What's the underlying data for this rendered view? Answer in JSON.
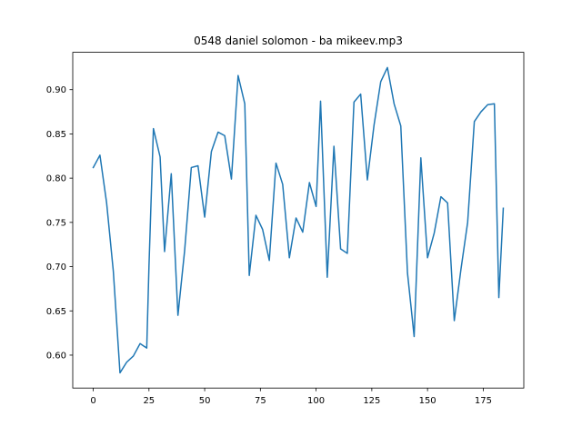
{
  "chart_data": {
    "type": "line",
    "title": "0548 daniel solomon - ba mikeev.mp3",
    "xlabel": "",
    "ylabel": "",
    "xlim": [
      -9.2,
      193.2
    ],
    "ylim": [
      0.5628,
      0.9422
    ],
    "x_ticks": [
      0,
      25,
      50,
      75,
      100,
      125,
      150,
      175
    ],
    "x_tick_labels": [
      "0",
      "25",
      "50",
      "75",
      "100",
      "125",
      "150",
      "175"
    ],
    "y_ticks": [
      0.6,
      0.65,
      0.7,
      0.75,
      0.8,
      0.85,
      0.9
    ],
    "y_tick_labels": [
      "0.60",
      "0.65",
      "0.70",
      "0.75",
      "0.80",
      "0.85",
      "0.90"
    ],
    "grid": false,
    "series": [
      {
        "color": "#1f77b4",
        "x": [
          0,
          3,
          6,
          9,
          12,
          15,
          18,
          21,
          24,
          25,
          27,
          30,
          32,
          35,
          38,
          41,
          44,
          47,
          50,
          53,
          56,
          59,
          62,
          65,
          68,
          70,
          73,
          76,
          79,
          82,
          85,
          88,
          91,
          94,
          97,
          100,
          102,
          105,
          108,
          111,
          114,
          117,
          120,
          123,
          126,
          129,
          132,
          135,
          138,
          141,
          144,
          147,
          150,
          153,
          156,
          159,
          162,
          165,
          168,
          171,
          174,
          177,
          180,
          182,
          184
        ],
        "values": [
          0.812,
          0.826,
          0.772,
          0.695,
          0.58,
          0.592,
          0.599,
          0.613,
          0.608,
          0.7,
          0.856,
          0.824,
          0.717,
          0.805,
          0.645,
          0.718,
          0.812,
          0.814,
          0.756,
          0.83,
          0.852,
          0.848,
          0.799,
          0.916,
          0.884,
          0.69,
          0.758,
          0.742,
          0.707,
          0.817,
          0.793,
          0.71,
          0.755,
          0.739,
          0.795,
          0.768,
          0.887,
          0.688,
          0.836,
          0.72,
          0.715,
          0.886,
          0.895,
          0.798,
          0.86,
          0.909,
          0.925,
          0.884,
          0.859,
          0.693,
          0.621,
          0.823,
          0.71,
          0.738,
          0.779,
          0.772,
          0.639,
          0.697,
          0.75,
          0.864,
          0.875,
          0.883,
          0.884,
          0.665,
          0.766
        ]
      }
    ]
  }
}
